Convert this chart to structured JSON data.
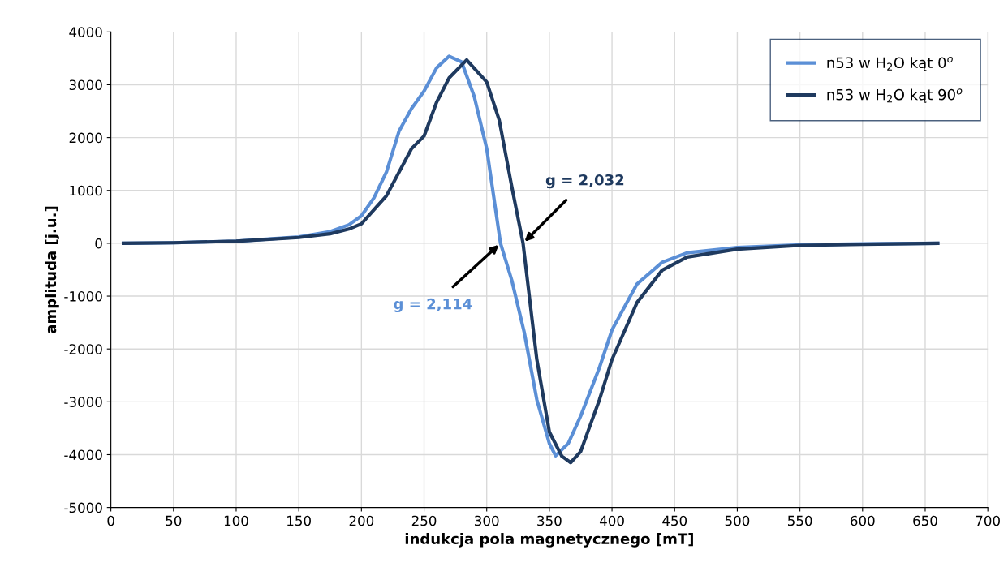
{
  "chart_data": {
    "type": "line",
    "xlabel": "indukcja pola magnetycznego [mT]",
    "ylabel": "amplituda [j.u.]",
    "xlim": [
      0,
      700
    ],
    "xticks": [
      0,
      50,
      100,
      150,
      200,
      250,
      300,
      350,
      400,
      450,
      500,
      550,
      600,
      650,
      700
    ],
    "ylim": [
      -5000,
      4000
    ],
    "yticks": [
      -5000,
      -4000,
      -3000,
      -2000,
      -1000,
      0,
      1000,
      2000,
      3000,
      4000
    ],
    "grid": true,
    "legend": "top right",
    "marker": "none",
    "line_style": "solid",
    "series": [
      {
        "name": "n53 w H$_{2}$O kąt 0$^{o}$",
        "color": "#5b8fd6",
        "x": [
          10,
          50,
          100,
          150,
          175,
          190,
          200,
          210,
          220,
          230,
          240,
          250,
          260,
          270,
          280,
          290,
          300,
          311,
          320,
          330,
          340,
          350,
          355,
          365,
          375,
          390,
          400,
          420,
          440,
          460,
          500,
          550,
          600,
          660
        ],
        "values": [
          0,
          10,
          40,
          120,
          220,
          350,
          520,
          860,
          1350,
          2120,
          2550,
          2880,
          3320,
          3540,
          3430,
          2780,
          1790,
          0,
          -700,
          -1690,
          -2960,
          -3790,
          -4020,
          -3790,
          -3270,
          -2350,
          -1640,
          -770,
          -360,
          -180,
          -80,
          -30,
          -10,
          0
        ]
      },
      {
        "name": "n53 w H$_{2}$O kąt 90$^{o}$",
        "color": "#1f3a5f",
        "x": [
          10,
          50,
          100,
          150,
          175,
          190,
          200,
          220,
          240,
          250,
          260,
          270,
          284,
          300,
          310,
          320,
          329,
          340,
          350,
          360,
          367,
          375,
          390,
          400,
          420,
          440,
          460,
          500,
          550,
          600,
          660
        ],
        "values": [
          0,
          10,
          40,
          110,
          180,
          270,
          370,
          900,
          1790,
          2030,
          2670,
          3130,
          3470,
          3050,
          2330,
          1070,
          0,
          -2200,
          -3570,
          -4030,
          -4150,
          -3940,
          -2960,
          -2200,
          -1120,
          -510,
          -260,
          -110,
          -40,
          -20,
          0
        ]
      }
    ],
    "annotations": [
      {
        "text": "g = 2,114",
        "x": 311,
        "y": 0
      },
      {
        "text": "g = 2,032",
        "x": 329,
        "y": 0
      }
    ]
  }
}
